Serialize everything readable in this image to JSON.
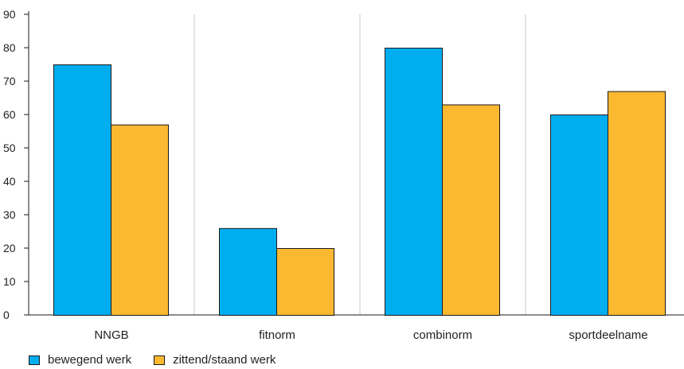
{
  "colors": {
    "bewegend": "#00adef",
    "zittend": "#fbb831",
    "grid": "#c8c8c8",
    "axis": "#1a1a1a"
  },
  "chart_data": {
    "type": "bar",
    "categories": [
      "NNGB",
      "fitnorm",
      "combinorm",
      "sportdeelname"
    ],
    "series": [
      {
        "name": "bewegend werk",
        "values": [
          75,
          26,
          80,
          60
        ]
      },
      {
        "name": "zittend/staand werk",
        "values": [
          57,
          20,
          63,
          67
        ]
      }
    ],
    "title": "",
    "xlabel": "",
    "ylabel": "",
    "ylim": [
      0,
      90
    ],
    "yticks": [
      "0",
      "10",
      "20",
      "30",
      "40",
      "50",
      "60",
      "70",
      "80",
      "90"
    ],
    "grid": "vertical separators between categories",
    "legend_position": "bottom-left"
  }
}
